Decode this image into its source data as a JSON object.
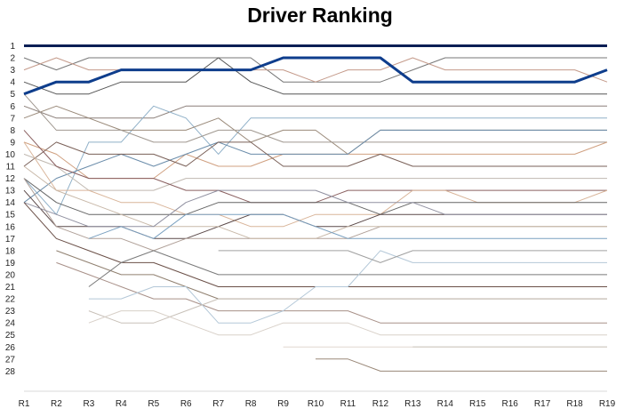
{
  "chart_data": {
    "type": "line",
    "title": "Driver Ranking",
    "xlabel": "",
    "ylabel": "",
    "categories": [
      "R1",
      "R2",
      "R3",
      "R4",
      "R5",
      "R6",
      "R7",
      "R8",
      "R9",
      "R10",
      "R11",
      "R12",
      "R13",
      "R14",
      "R15",
      "R16",
      "R17",
      "R18",
      "R19"
    ],
    "y_ticks": [
      "1",
      "2",
      "3",
      "4",
      "5",
      "6",
      "7",
      "8",
      "9",
      "10",
      "11",
      "12",
      "13",
      "14",
      "15",
      "16",
      "17",
      "18",
      "19",
      "20",
      "21",
      "22",
      "23",
      "24",
      "25",
      "26",
      "27",
      "28"
    ],
    "y_inverted": true,
    "ylim": [
      1,
      28
    ],
    "grid": false,
    "legend": "none",
    "highlight_series": [
      0,
      1
    ],
    "series": [
      {
        "color": "#0a1e55",
        "width": 3,
        "values": [
          1,
          1,
          1,
          1,
          1,
          1,
          1,
          1,
          1,
          1,
          1,
          1,
          1,
          1,
          1,
          1,
          1,
          1,
          1
        ]
      },
      {
        "color": "#0e3d8c",
        "width": 3,
        "values": [
          5,
          4,
          4,
          3,
          3,
          3,
          3,
          3,
          2,
          2,
          2,
          2,
          4,
          4,
          4,
          4,
          4,
          4,
          3
        ]
      },
      {
        "color": "#777777",
        "width": 1,
        "values": [
          2,
          3,
          2,
          2,
          2,
          2,
          2,
          2,
          4,
          4,
          4,
          4,
          3,
          2,
          2,
          2,
          2,
          2,
          2
        ]
      },
      {
        "color": "#c49a8a",
        "width": 1,
        "values": [
          3,
          2,
          3,
          3,
          3,
          3,
          3,
          3,
          3,
          4,
          3,
          3,
          2,
          3,
          3,
          3,
          3,
          3,
          4
        ]
      },
      {
        "color": "#555555",
        "width": 1,
        "values": [
          4,
          5,
          5,
          4,
          4,
          4,
          2,
          4,
          5,
          5,
          5,
          5,
          5,
          5,
          5,
          5,
          5,
          5,
          5
        ]
      },
      {
        "color": "#8a7e78",
        "width": 1,
        "values": [
          6,
          7,
          7,
          7,
          7,
          6,
          6,
          6,
          6,
          6,
          6,
          6,
          6,
          6,
          6,
          6,
          6,
          6,
          6
        ]
      },
      {
        "color": "#8fb0c8",
        "width": 1,
        "values": [
          12,
          15,
          9,
          9,
          6,
          7,
          10,
          7,
          7,
          7,
          7,
          7,
          7,
          7,
          7,
          7,
          7,
          7,
          7
        ]
      },
      {
        "color": "#9a8a7a",
        "width": 1,
        "values": [
          7,
          6,
          7,
          8,
          8,
          8,
          7,
          9,
          8,
          8,
          10,
          8,
          8,
          8,
          8,
          8,
          8,
          8,
          8
        ]
      },
      {
        "color": "#a09890",
        "width": 1,
        "values": [
          5,
          8,
          8,
          8,
          9,
          9,
          8,
          8,
          9,
          9,
          9,
          9,
          9,
          9,
          9,
          9,
          9,
          9,
          9
        ]
      },
      {
        "color": "#d0a080",
        "width": 1,
        "values": [
          9,
          10,
          12,
          12,
          12,
          10,
          11,
          11,
          10,
          10,
          10,
          10,
          10,
          10,
          10,
          10,
          10,
          10,
          9
        ]
      },
      {
        "color": "#6a8caa",
        "width": 1,
        "values": [
          14,
          12,
          11,
          10,
          11,
          10,
          9,
          10,
          10,
          10,
          10,
          8,
          8,
          8,
          8,
          8,
          8,
          8,
          8
        ]
      },
      {
        "color": "#7a6058",
        "width": 1,
        "values": [
          11,
          9,
          10,
          10,
          10,
          11,
          9,
          9,
          11,
          11,
          11,
          10,
          11,
          11,
          11,
          11,
          11,
          11,
          11
        ]
      },
      {
        "color": "#c0b8b0",
        "width": 1,
        "values": [
          10,
          11,
          13,
          13,
          13,
          12,
          12,
          12,
          12,
          12,
          12,
          12,
          12,
          12,
          12,
          12,
          12,
          12,
          12
        ]
      },
      {
        "color": "#8a6060",
        "width": 1,
        "values": [
          8,
          11,
          12,
          12,
          12,
          13,
          13,
          14,
          14,
          14,
          13,
          13,
          13,
          13,
          13,
          13,
          13,
          13,
          13
        ]
      },
      {
        "color": "#d9b59a",
        "width": 1,
        "values": [
          9,
          13,
          13,
          14,
          14,
          15,
          15,
          16,
          16,
          15,
          15,
          15,
          13,
          13,
          14,
          14,
          14,
          14,
          13
        ]
      },
      {
        "color": "#666666",
        "width": 1,
        "values": [
          12,
          14,
          15,
          15,
          15,
          15,
          14,
          14,
          14,
          14,
          14,
          15,
          14,
          14,
          14,
          14,
          14,
          14,
          14
        ]
      },
      {
        "color": "#5a4848",
        "width": 1,
        "values": [
          13,
          16,
          16,
          16,
          17,
          17,
          16,
          15,
          15,
          16,
          16,
          15,
          15,
          15,
          15,
          15,
          15,
          15,
          15
        ]
      },
      {
        "color": "#b0a098",
        "width": 1,
        "values": [
          12,
          16,
          17,
          17,
          18,
          17,
          17,
          17,
          17,
          17,
          17,
          16,
          16,
          16,
          16,
          16,
          16,
          16,
          16
        ]
      },
      {
        "color": "#c8b8a8",
        "width": 1,
        "values": [
          11,
          13,
          14,
          15,
          16,
          16,
          16,
          17,
          17,
          17,
          16,
          16,
          16,
          16,
          16,
          16,
          16,
          16,
          16
        ]
      },
      {
        "color": "#9090a0",
        "width": 1,
        "values": [
          14,
          15,
          16,
          16,
          16,
          14,
          13,
          13,
          13,
          13,
          14,
          14,
          14,
          15,
          15,
          15,
          15,
          15,
          15
        ]
      },
      {
        "color": "#7aa0c0",
        "width": 1,
        "values": [
          null,
          null,
          17,
          16,
          17,
          15,
          15,
          15,
          15,
          16,
          17,
          17,
          17,
          17,
          17,
          17,
          17,
          17,
          17
        ]
      },
      {
        "color": "#6b5048",
        "width": 1,
        "values": [
          14,
          17,
          18,
          19,
          19,
          20,
          21,
          21,
          21,
          21,
          21,
          21,
          21,
          21,
          21,
          21,
          21,
          21,
          21
        ]
      },
      {
        "color": "#908070",
        "width": 1,
        "values": [
          null,
          18,
          19,
          20,
          20,
          21,
          22,
          22,
          22,
          22,
          22,
          22,
          22,
          22,
          22,
          22,
          22,
          22,
          22
        ]
      },
      {
        "color": "#a89088",
        "width": 1,
        "values": [
          null,
          19,
          20,
          21,
          22,
          22,
          23,
          23,
          23,
          23,
          23,
          24,
          24,
          24,
          24,
          24,
          24,
          24,
          24
        ]
      },
      {
        "color": "#7a7a7a",
        "width": 1,
        "values": [
          null,
          null,
          21,
          19,
          18,
          19,
          20,
          20,
          20,
          20,
          20,
          20,
          20,
          20,
          20,
          20,
          20,
          20,
          20
        ]
      },
      {
        "color": "#b4c8d8",
        "width": 1,
        "values": [
          null,
          null,
          22,
          22,
          21,
          21,
          24,
          24,
          23,
          21,
          21,
          18,
          19,
          19,
          19,
          19,
          19,
          19,
          19
        ]
      },
      {
        "color": "#c8c0b8",
        "width": 1,
        "values": [
          null,
          null,
          23,
          24,
          24,
          23,
          22,
          22,
          22,
          22,
          22,
          22,
          22,
          22,
          22,
          22,
          22,
          22,
          22
        ]
      },
      {
        "color": "#d8d0c8",
        "width": 1,
        "values": [
          null,
          null,
          24,
          23,
          23,
          24,
          25,
          25,
          24,
          24,
          24,
          25,
          25,
          25,
          25,
          25,
          25,
          25,
          25
        ]
      },
      {
        "color": "#a0a0a0",
        "width": 1,
        "values": [
          null,
          null,
          null,
          null,
          null,
          null,
          18,
          18,
          18,
          18,
          18,
          19,
          18,
          18,
          18,
          18,
          18,
          18,
          18
        ]
      },
      {
        "color": "#98988a",
        "width": 1,
        "values": [
          null,
          null,
          null,
          null,
          null,
          null,
          null,
          null,
          null,
          null,
          null,
          null,
          26,
          26,
          26,
          26,
          26,
          26,
          26
        ]
      },
      {
        "color": "#e0d8d0",
        "width": 1,
        "values": [
          null,
          null,
          null,
          null,
          null,
          null,
          null,
          null,
          26,
          26,
          26,
          26,
          26,
          26,
          26,
          26,
          26,
          26,
          26
        ]
      },
      {
        "color": "#9a8878",
        "width": 1,
        "values": [
          null,
          null,
          null,
          null,
          null,
          null,
          null,
          null,
          null,
          27,
          27,
          28,
          28,
          28,
          28,
          28,
          28,
          28,
          28
        ]
      }
    ]
  }
}
